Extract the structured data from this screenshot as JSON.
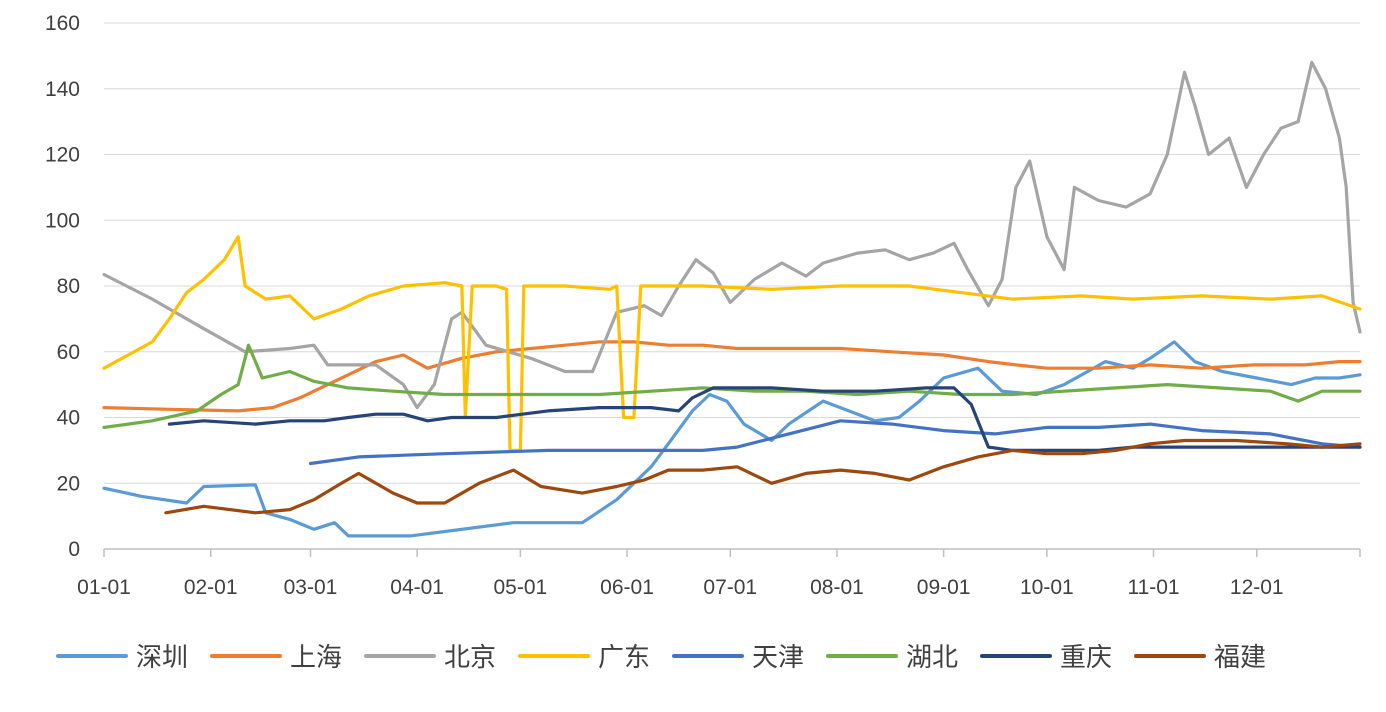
{
  "chart_data": {
    "type": "line",
    "title": "",
    "xlabel": "",
    "ylabel": "",
    "ylim": [
      0,
      160
    ],
    "yticks": [
      0,
      20,
      40,
      60,
      80,
      100,
      120,
      140,
      160
    ],
    "xlim": [
      1,
      366
    ],
    "xticks": [
      {
        "day": 1,
        "label": "01-01"
      },
      {
        "day": 32,
        "label": "02-01"
      },
      {
        "day": 61,
        "label": "03-01"
      },
      {
        "day": 92,
        "label": "04-01"
      },
      {
        "day": 122,
        "label": "05-01"
      },
      {
        "day": 153,
        "label": "06-01"
      },
      {
        "day": 183,
        "label": "07-01"
      },
      {
        "day": 214,
        "label": "08-01"
      },
      {
        "day": 245,
        "label": "09-01"
      },
      {
        "day": 275,
        "label": "10-01"
      },
      {
        "day": 306,
        "label": "11-01"
      },
      {
        "day": 336,
        "label": "12-01"
      }
    ],
    "grid": true,
    "legend_position": "bottom",
    "series": [
      {
        "name": "深圳",
        "color": "#5B9BD5",
        "points": [
          [
            1,
            18.5
          ],
          [
            12,
            16
          ],
          [
            25,
            14
          ],
          [
            30,
            19
          ],
          [
            45,
            19.5
          ],
          [
            48,
            11
          ],
          [
            55,
            9
          ],
          [
            62,
            6
          ],
          [
            68,
            8
          ],
          [
            72,
            4
          ],
          [
            90,
            4
          ],
          [
            120,
            8
          ],
          [
            140,
            8
          ],
          [
            150,
            15
          ],
          [
            160,
            25
          ],
          [
            165,
            32
          ],
          [
            172,
            42
          ],
          [
            177,
            47
          ],
          [
            182,
            45
          ],
          [
            187,
            38
          ],
          [
            195,
            33
          ],
          [
            200,
            38
          ],
          [
            210,
            45
          ],
          [
            225,
            39
          ],
          [
            232,
            40
          ],
          [
            238,
            45
          ],
          [
            245,
            52
          ],
          [
            255,
            55
          ],
          [
            262,
            48
          ],
          [
            272,
            47
          ],
          [
            280,
            50
          ],
          [
            292,
            57
          ],
          [
            300,
            55
          ],
          [
            305,
            58
          ],
          [
            312,
            63
          ],
          [
            318,
            57
          ],
          [
            326,
            54
          ],
          [
            336,
            52
          ],
          [
            346,
            50
          ],
          [
            353,
            52
          ],
          [
            360,
            52
          ],
          [
            366,
            53
          ]
        ]
      },
      {
        "name": "上海",
        "color": "#ED7D31",
        "points": [
          [
            1,
            43
          ],
          [
            20,
            42.5
          ],
          [
            40,
            42
          ],
          [
            50,
            43
          ],
          [
            58,
            46
          ],
          [
            62,
            48
          ],
          [
            68,
            51
          ],
          [
            72,
            53
          ],
          [
            80,
            57
          ],
          [
            88,
            59
          ],
          [
            95,
            55
          ],
          [
            105,
            58
          ],
          [
            115,
            60
          ],
          [
            125,
            61
          ],
          [
            135,
            62
          ],
          [
            145,
            63
          ],
          [
            155,
            63
          ],
          [
            165,
            62
          ],
          [
            175,
            62
          ],
          [
            185,
            61
          ],
          [
            200,
            61
          ],
          [
            215,
            61
          ],
          [
            230,
            60
          ],
          [
            245,
            59
          ],
          [
            258,
            57
          ],
          [
            266,
            56
          ],
          [
            275,
            55
          ],
          [
            290,
            55
          ],
          [
            305,
            56
          ],
          [
            320,
            55
          ],
          [
            335,
            56
          ],
          [
            350,
            56
          ],
          [
            360,
            57
          ],
          [
            366,
            57
          ]
        ]
      },
      {
        "name": "北京",
        "color": "#A5A5A5",
        "points": [
          [
            1,
            83.5
          ],
          [
            15,
            76
          ],
          [
            30,
            67
          ],
          [
            42,
            60
          ],
          [
            55,
            61
          ],
          [
            62,
            62
          ],
          [
            66,
            56
          ],
          [
            80,
            56
          ],
          [
            88,
            50
          ],
          [
            92,
            43
          ],
          [
            97,
            50
          ],
          [
            102,
            70
          ],
          [
            105,
            72
          ],
          [
            112,
            62
          ],
          [
            125,
            58
          ],
          [
            135,
            54
          ],
          [
            143,
            54
          ],
          [
            150,
            72
          ],
          [
            158,
            74
          ],
          [
            163,
            71
          ],
          [
            168,
            80
          ],
          [
            173,
            88
          ],
          [
            178,
            84
          ],
          [
            183,
            75
          ],
          [
            190,
            82
          ],
          [
            198,
            87
          ],
          [
            205,
            83
          ],
          [
            210,
            87
          ],
          [
            220,
            90
          ],
          [
            228,
            91
          ],
          [
            235,
            88
          ],
          [
            242,
            90
          ],
          [
            248,
            93
          ],
          [
            252,
            85
          ],
          [
            258,
            74
          ],
          [
            262,
            82
          ],
          [
            266,
            110
          ],
          [
            270,
            118
          ],
          [
            275,
            95
          ],
          [
            280,
            85
          ],
          [
            283,
            110
          ],
          [
            290,
            106
          ],
          [
            298,
            104
          ],
          [
            305,
            108
          ],
          [
            310,
            120
          ],
          [
            315,
            145
          ],
          [
            318,
            135
          ],
          [
            322,
            120
          ],
          [
            328,
            125
          ],
          [
            333,
            110
          ],
          [
            338,
            120
          ],
          [
            343,
            128
          ],
          [
            348,
            130
          ],
          [
            352,
            148
          ],
          [
            356,
            140
          ],
          [
            360,
            125
          ],
          [
            362,
            110
          ],
          [
            364,
            75
          ],
          [
            366,
            66
          ]
        ]
      },
      {
        "name": "广东",
        "color": "#FFC000",
        "points": [
          [
            1,
            55
          ],
          [
            15,
            63
          ],
          [
            20,
            70
          ],
          [
            25,
            78
          ],
          [
            30,
            82
          ],
          [
            36,
            88
          ],
          [
            40,
            95
          ],
          [
            42,
            80
          ],
          [
            48,
            76
          ],
          [
            55,
            77
          ],
          [
            62,
            70
          ],
          [
            70,
            73
          ],
          [
            78,
            77
          ],
          [
            88,
            80
          ],
          [
            100,
            81
          ],
          [
            105,
            80
          ],
          [
            106,
            40
          ],
          [
            108,
            80
          ],
          [
            115,
            80
          ],
          [
            118,
            79
          ],
          [
            119,
            30
          ],
          [
            122,
            30
          ],
          [
            123,
            80
          ],
          [
            135,
            80
          ],
          [
            148,
            79
          ],
          [
            150,
            80
          ],
          [
            152,
            40
          ],
          [
            155,
            40
          ],
          [
            157,
            80
          ],
          [
            175,
            80
          ],
          [
            195,
            79
          ],
          [
            215,
            80
          ],
          [
            235,
            80
          ],
          [
            250,
            78
          ],
          [
            265,
            76
          ],
          [
            285,
            77
          ],
          [
            300,
            76
          ],
          [
            320,
            77
          ],
          [
            340,
            76
          ],
          [
            355,
            77
          ],
          [
            366,
            73
          ]
        ]
      },
      {
        "name": "天津",
        "color": "#4472C4",
        "points": [
          [
            61,
            26
          ],
          [
            75,
            28
          ],
          [
            100,
            29
          ],
          [
            130,
            30
          ],
          [
            160,
            30
          ],
          [
            175,
            30
          ],
          [
            185,
            31
          ],
          [
            200,
            35
          ],
          [
            215,
            39
          ],
          [
            230,
            38
          ],
          [
            245,
            36
          ],
          [
            260,
            35
          ],
          [
            275,
            37
          ],
          [
            290,
            37
          ],
          [
            305,
            38
          ],
          [
            320,
            36
          ],
          [
            340,
            35
          ],
          [
            355,
            32
          ],
          [
            366,
            31
          ]
        ]
      },
      {
        "name": "湖北",
        "color": "#70AD47",
        "points": [
          [
            1,
            37
          ],
          [
            15,
            39
          ],
          [
            28,
            42
          ],
          [
            35,
            47
          ],
          [
            40,
            50
          ],
          [
            43,
            62
          ],
          [
            47,
            52
          ],
          [
            55,
            54
          ],
          [
            62,
            51
          ],
          [
            72,
            49
          ],
          [
            85,
            48
          ],
          [
            100,
            47
          ],
          [
            115,
            47
          ],
          [
            130,
            47
          ],
          [
            145,
            47
          ],
          [
            160,
            48
          ],
          [
            175,
            49
          ],
          [
            190,
            48
          ],
          [
            205,
            48
          ],
          [
            220,
            47
          ],
          [
            235,
            48
          ],
          [
            250,
            47
          ],
          [
            265,
            47
          ],
          [
            280,
            48
          ],
          [
            295,
            49
          ],
          [
            310,
            50
          ],
          [
            325,
            49
          ],
          [
            340,
            48
          ],
          [
            348,
            45
          ],
          [
            355,
            48
          ],
          [
            366,
            48
          ]
        ]
      },
      {
        "name": "重庆",
        "color": "#264478",
        "points": [
          [
            20,
            38
          ],
          [
            30,
            39
          ],
          [
            45,
            38
          ],
          [
            55,
            39
          ],
          [
            65,
            39
          ],
          [
            72,
            40
          ],
          [
            80,
            41
          ],
          [
            88,
            41
          ],
          [
            95,
            39
          ],
          [
            102,
            40
          ],
          [
            115,
            40
          ],
          [
            130,
            42
          ],
          [
            145,
            43
          ],
          [
            160,
            43
          ],
          [
            168,
            42
          ],
          [
            172,
            46
          ],
          [
            178,
            49
          ],
          [
            195,
            49
          ],
          [
            210,
            48
          ],
          [
            225,
            48
          ],
          [
            240,
            49
          ],
          [
            248,
            49
          ],
          [
            253,
            44
          ],
          [
            258,
            31
          ],
          [
            265,
            30
          ],
          [
            275,
            30
          ],
          [
            290,
            30
          ],
          [
            300,
            31
          ],
          [
            320,
            31
          ],
          [
            340,
            31
          ],
          [
            355,
            31
          ],
          [
            366,
            31
          ]
        ]
      },
      {
        "name": "福建",
        "color": "#9E480E",
        "points": [
          [
            19,
            11
          ],
          [
            30,
            13
          ],
          [
            45,
            11
          ],
          [
            55,
            12
          ],
          [
            62,
            15
          ],
          [
            70,
            20
          ],
          [
            75,
            23
          ],
          [
            85,
            17
          ],
          [
            92,
            14
          ],
          [
            100,
            14
          ],
          [
            110,
            20
          ],
          [
            120,
            24
          ],
          [
            128,
            19
          ],
          [
            140,
            17
          ],
          [
            150,
            19
          ],
          [
            158,
            21
          ],
          [
            165,
            24
          ],
          [
            175,
            24
          ],
          [
            185,
            25
          ],
          [
            195,
            20
          ],
          [
            205,
            23
          ],
          [
            215,
            24
          ],
          [
            225,
            23
          ],
          [
            235,
            21
          ],
          [
            245,
            25
          ],
          [
            255,
            28
          ],
          [
            265,
            30
          ],
          [
            275,
            29
          ],
          [
            285,
            29
          ],
          [
            295,
            30
          ],
          [
            305,
            32
          ],
          [
            315,
            33
          ],
          [
            330,
            33
          ],
          [
            345,
            32
          ],
          [
            355,
            31
          ],
          [
            366,
            32
          ]
        ]
      }
    ]
  }
}
